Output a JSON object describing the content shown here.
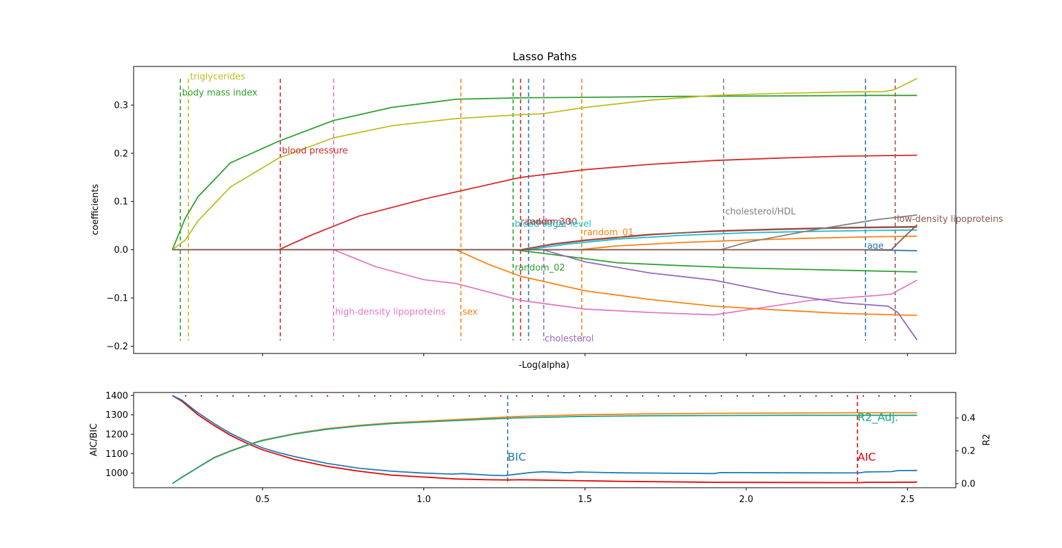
{
  "chart_data": [
    {
      "type": "line",
      "title": "Lasso Paths",
      "xlabel": "-Log(alpha)",
      "ylabel": "coefficients",
      "xlim": [
        0.1,
        2.65
      ],
      "ylim": [
        -0.215,
        0.38
      ],
      "xticks": [
        0.5,
        1.0,
        1.5,
        2.0,
        2.5
      ],
      "xtick_labels_shown": false,
      "yticks": [
        -0.2,
        -0.1,
        0.0,
        0.1,
        0.2,
        0.3
      ],
      "ytick_labels": [
        "−0.2",
        "−0.1",
        "0.0",
        "0.1",
        "0.2",
        "0.3"
      ],
      "grid": false,
      "legend": "none",
      "series": [
        {
          "name": "body mass index",
          "color": "#2ca02c",
          "x": [
            0.22,
            0.26,
            0.3,
            0.4,
            0.55,
            0.72,
            0.9,
            1.1,
            1.3,
            1.5,
            1.8,
            2.1,
            2.4,
            2.53
          ],
          "values": [
            0.0,
            0.065,
            0.11,
            0.18,
            0.225,
            0.268,
            0.295,
            0.312,
            0.315,
            0.316,
            0.318,
            0.319,
            0.32,
            0.32
          ]
        },
        {
          "name": "triglycerides",
          "color": "#bcbd22",
          "x": [
            0.22,
            0.26,
            0.3,
            0.4,
            0.55,
            0.72,
            0.9,
            1.1,
            1.3,
            1.37,
            1.5,
            1.7,
            1.9,
            2.1,
            2.3,
            2.43,
            2.46,
            2.53
          ],
          "values": [
            0.0,
            0.02,
            0.06,
            0.13,
            0.19,
            0.232,
            0.257,
            0.272,
            0.28,
            0.282,
            0.295,
            0.31,
            0.32,
            0.324,
            0.327,
            0.328,
            0.332,
            0.355
          ]
        },
        {
          "name": "blood pressure",
          "color": "#d62728",
          "x": [
            0.22,
            0.55,
            0.65,
            0.8,
            1.0,
            1.1,
            1.3,
            1.5,
            1.7,
            1.9,
            2.1,
            2.3,
            2.53
          ],
          "values": [
            0.0,
            0.0,
            0.03,
            0.07,
            0.105,
            0.12,
            0.15,
            0.166,
            0.177,
            0.185,
            0.19,
            0.194,
            0.196
          ]
        },
        {
          "name": "high-density lipoproteins",
          "color": "#e377c2",
          "x": [
            0.22,
            0.72,
            0.85,
            1.0,
            1.1,
            1.3,
            1.5,
            1.7,
            1.9,
            2.0,
            2.2,
            2.4,
            2.45,
            2.53
          ],
          "values": [
            0.0,
            0.0,
            -0.035,
            -0.062,
            -0.07,
            -0.105,
            -0.123,
            -0.13,
            -0.135,
            -0.125,
            -0.105,
            -0.095,
            -0.092,
            -0.063
          ]
        },
        {
          "name": "sex",
          "color": "#ff7f0e",
          "x": [
            0.22,
            1.1,
            1.2,
            1.3,
            1.5,
            1.7,
            1.9,
            2.1,
            2.3,
            2.53
          ],
          "values": [
            0.0,
            0.0,
            -0.03,
            -0.055,
            -0.085,
            -0.103,
            -0.117,
            -0.125,
            -0.132,
            -0.136
          ]
        },
        {
          "name": "random_02",
          "color": "#2ca02c",
          "x": [
            0.22,
            1.28,
            1.4,
            1.6,
            1.8,
            2.0,
            2.2,
            2.4,
            2.53
          ],
          "values": [
            0.0,
            0.0,
            -0.01,
            -0.027,
            -0.033,
            -0.038,
            -0.041,
            -0.044,
            -0.046
          ]
        },
        {
          "name": "random_30",
          "color": "#d62728",
          "x": [
            0.22,
            1.3,
            1.4,
            1.5,
            1.7,
            1.9,
            2.1,
            2.3,
            2.53
          ],
          "values": [
            0.0,
            0.0,
            0.012,
            0.02,
            0.032,
            0.038,
            0.042,
            0.045,
            0.047
          ]
        },
        {
          "name": "random_30 (2)",
          "color": "#8c564b",
          "x": [
            0.22,
            1.3,
            1.4,
            1.5,
            1.7,
            1.9,
            2.1,
            2.3,
            2.53
          ],
          "values": [
            0.0,
            0.0,
            0.011,
            0.019,
            0.031,
            0.039,
            0.043,
            0.046,
            0.048
          ]
        },
        {
          "name": "blood sugar level",
          "color": "#17becf",
          "x": [
            0.22,
            1.32,
            1.45,
            1.6,
            1.8,
            2.0,
            2.2,
            2.4,
            2.53
          ],
          "values": [
            0.0,
            0.0,
            0.012,
            0.022,
            0.03,
            0.035,
            0.038,
            0.04,
            0.041
          ]
        },
        {
          "name": "cholesterol",
          "color": "#9467bd",
          "x": [
            0.22,
            1.37,
            1.5,
            1.7,
            1.9,
            2.1,
            2.3,
            2.44,
            2.47,
            2.53
          ],
          "values": [
            0.0,
            0.0,
            -0.025,
            -0.048,
            -0.063,
            -0.09,
            -0.11,
            -0.117,
            -0.13,
            -0.187
          ]
        },
        {
          "name": "random_01",
          "color": "#ff7f0e",
          "x": [
            0.22,
            1.48,
            1.6,
            1.8,
            2.0,
            2.2,
            2.4,
            2.53
          ],
          "values": [
            0.0,
            0.0,
            0.008,
            0.015,
            0.02,
            0.024,
            0.027,
            0.028
          ]
        },
        {
          "name": "cholesterol/HDL",
          "color": "#7f7f7f",
          "x": [
            0.22,
            1.92,
            2.0,
            2.2,
            2.4,
            2.53
          ],
          "values": [
            0.0,
            0.0,
            0.015,
            0.04,
            0.062,
            0.072
          ]
        },
        {
          "name": "age",
          "color": "#1f77b4",
          "x": [
            0.22,
            2.36,
            2.45,
            2.53
          ],
          "values": [
            0.0,
            0.0,
            -0.001,
            -0.002
          ]
        },
        {
          "name": "low-density lipoproteins",
          "color": "#8c564b",
          "x": [
            0.22,
            2.45,
            2.48,
            2.53
          ],
          "values": [
            0.0,
            0.0,
            0.02,
            0.052
          ]
        }
      ],
      "vlines": [
        {
          "x": 0.245,
          "color": "#2ca02c"
        },
        {
          "x": 0.27,
          "color": "#bcbd22"
        },
        {
          "x": 0.555,
          "color": "#d62728"
        },
        {
          "x": 0.72,
          "color": "#e377c2"
        },
        {
          "x": 1.115,
          "color": "#ff7f0e"
        },
        {
          "x": 1.277,
          "color": "#2ca02c"
        },
        {
          "x": 1.3,
          "color": "#d62728"
        },
        {
          "x": 1.325,
          "color": "#1f77b4"
        },
        {
          "x": 1.372,
          "color": "#9467bd"
        },
        {
          "x": 1.49,
          "color": "#ff7f0e"
        },
        {
          "x": 1.93,
          "color": "#7f7f7f"
        },
        {
          "x": 2.37,
          "color": "#1f77b4"
        },
        {
          "x": 2.462,
          "color": "#8c564b"
        }
      ],
      "annotations": [
        {
          "text": "triglycerides",
          "x": 0.275,
          "y": 0.353,
          "color": "#bcbd22"
        },
        {
          "text": "body mass index",
          "x": 0.25,
          "y": 0.32,
          "color": "#2ca02c"
        },
        {
          "text": "blood pressure",
          "x": 0.56,
          "y": 0.2,
          "color": "#d62728"
        },
        {
          "text": "high-density lipoproteins",
          "x": 0.725,
          "y": -0.135,
          "color": "#e377c2"
        },
        {
          "text": "sex",
          "x": 1.12,
          "y": -0.135,
          "color": "#ff7f0e"
        },
        {
          "text": "random_02",
          "x": 1.282,
          "y": -0.043,
          "color": "#2ca02c"
        },
        {
          "text": "random_30",
          "x": 1.3,
          "y": 0.052,
          "color": "#d62728"
        },
        {
          "text": "random_30",
          "x": 1.32,
          "y": 0.052,
          "color": "#8c564b"
        },
        {
          "text": "blood sugar level",
          "x": 1.282,
          "y": 0.048,
          "color": "#17becf"
        },
        {
          "text": "cholesterol",
          "x": 1.375,
          "y": -0.19,
          "color": "#9467bd"
        },
        {
          "text": "random_01",
          "x": 1.495,
          "y": 0.03,
          "color": "#ff7f0e"
        },
        {
          "text": "cholesterol/HDL",
          "x": 1.935,
          "y": 0.073,
          "color": "#7f7f7f"
        },
        {
          "text": "age",
          "x": 2.375,
          "y": 0.002,
          "color": "#1f77b4"
        },
        {
          "text": "low-density lipoproteins",
          "x": 2.467,
          "y": 0.058,
          "color": "#8c564b"
        }
      ]
    },
    {
      "type": "line",
      "xlabel": "",
      "ylabel": "AIC/BIC",
      "ylabel_right": "R2",
      "xlim": [
        0.1,
        2.65
      ],
      "ylim": [
        925,
        1415
      ],
      "ylim_right": [
        -0.025,
        0.555
      ],
      "xticks": [
        0.5,
        1.0,
        1.5,
        2.0,
        2.5
      ],
      "xtick_labels": [
        "0.5",
        "1.0",
        "1.5",
        "2.0",
        "2.5"
      ],
      "yticks": [
        1000,
        1100,
        1200,
        1300,
        1400
      ],
      "ytick_labels": [
        "1000",
        "1100",
        "1200",
        "1300",
        "1400"
      ],
      "yticks_right": [
        0.0,
        0.2,
        0.4
      ],
      "ytick_labels_right": [
        "0.0",
        "0.2",
        "0.4"
      ],
      "grid": false,
      "legend": "none",
      "series": [
        {
          "name": "AIC",
          "color": "#e60000",
          "axis": "left",
          "x": [
            0.22,
            0.25,
            0.3,
            0.35,
            0.4,
            0.45,
            0.5,
            0.55,
            0.6,
            0.7,
            0.8,
            0.9,
            1.0,
            1.1,
            1.2,
            1.26,
            1.3,
            1.35,
            1.45,
            1.6,
            1.9,
            2.1,
            2.35,
            2.37,
            2.45,
            2.53
          ],
          "values": [
            1400,
            1370,
            1300,
            1245,
            1195,
            1155,
            1120,
            1095,
            1070,
            1035,
            1010,
            990,
            980,
            970,
            966,
            965,
            966,
            965,
            962,
            958,
            953,
            952,
            951,
            953,
            953,
            954
          ]
        },
        {
          "name": "BIC",
          "color": "#1f77b4",
          "axis": "left",
          "x": [
            0.22,
            0.25,
            0.3,
            0.35,
            0.4,
            0.45,
            0.5,
            0.55,
            0.6,
            0.7,
            0.8,
            0.9,
            1.0,
            1.09,
            1.12,
            1.2,
            1.25,
            1.28,
            1.33,
            1.37,
            1.45,
            1.48,
            1.6,
            1.9,
            1.92,
            2.1,
            2.35,
            2.37,
            2.45,
            2.47,
            2.53
          ],
          "values": [
            1400,
            1375,
            1310,
            1255,
            1205,
            1165,
            1130,
            1105,
            1085,
            1050,
            1025,
            1010,
            1000,
            995,
            998,
            990,
            987,
            993,
            1003,
            1007,
            1002,
            1006,
            1002,
            998,
            1003,
            1002,
            1001,
            1006,
            1008,
            1013,
            1014
          ]
        },
        {
          "name": "R2",
          "color": "#ff7f0e",
          "axis": "right",
          "x": [
            0.22,
            0.25,
            0.3,
            0.35,
            0.4,
            0.45,
            0.5,
            0.6,
            0.7,
            0.8,
            0.9,
            1.0,
            1.1,
            1.2,
            1.3,
            1.4,
            1.5,
            1.7,
            1.9,
            2.1,
            2.35,
            2.53
          ],
          "values": [
            0.0,
            0.04,
            0.1,
            0.16,
            0.2,
            0.235,
            0.265,
            0.305,
            0.335,
            0.355,
            0.37,
            0.38,
            0.39,
            0.4,
            0.41,
            0.415,
            0.42,
            0.425,
            0.428,
            0.43,
            0.432,
            0.432
          ]
        },
        {
          "name": "R2_Adj.",
          "color": "#17a589",
          "axis": "right",
          "x": [
            0.22,
            0.25,
            0.3,
            0.35,
            0.4,
            0.45,
            0.5,
            0.6,
            0.7,
            0.8,
            0.9,
            1.0,
            1.1,
            1.2,
            1.3,
            1.4,
            1.5,
            1.7,
            1.9,
            2.1,
            2.35,
            2.53
          ],
          "values": [
            0.0,
            0.038,
            0.098,
            0.157,
            0.197,
            0.232,
            0.262,
            0.302,
            0.331,
            0.351,
            0.366,
            0.375,
            0.384,
            0.393,
            0.401,
            0.405,
            0.41,
            0.413,
            0.415,
            0.416,
            0.416,
            0.416
          ]
        }
      ],
      "vlines": [
        {
          "x": 1.26,
          "color": "#1f77b4",
          "label": "BIC"
        },
        {
          "x": 2.345,
          "color": "#e60000",
          "label": "AIC"
        }
      ],
      "annotations": [
        {
          "text": "BIC",
          "x": 1.26,
          "y": 1085,
          "color": "#1f77b4"
        },
        {
          "text": "AIC",
          "x": 2.345,
          "y": 1085,
          "color": "#e60000"
        },
        {
          "text": "R2_Adj.",
          "x": 2.345,
          "y": 1290,
          "color": "#17a589"
        }
      ]
    }
  ]
}
